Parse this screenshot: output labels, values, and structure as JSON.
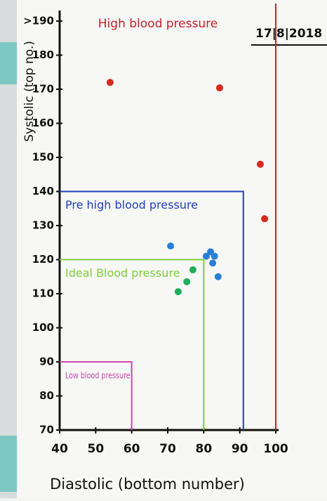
{
  "chart_data": {
    "type": "scatter",
    "title": "High blood pressure",
    "date": "17|8|2018",
    "x_label": "Diastolic (bottom number)",
    "y_label": "Systolic (top no.)",
    "xlim": [
      40,
      100
    ],
    "ylim": [
      70,
      190
    ],
    "xticks": [
      40,
      50,
      60,
      70,
      80,
      90,
      100
    ],
    "yticks": [
      70,
      80,
      90,
      100,
      110,
      120,
      130,
      140,
      150,
      160,
      170,
      180,
      {
        "value": 190,
        "label": ">190"
      }
    ],
    "threshold": {
      "x": 100,
      "color": "#c8202a"
    },
    "regions": [
      {
        "label": "Pre high blood pressure",
        "xlim": [
          40,
          91
        ],
        "ylim": [
          70,
          140
        ],
        "color": "#1f3fbf"
      },
      {
        "label": "Ideal Blood pressure",
        "xlim": [
          40,
          80
        ],
        "ylim": [
          70,
          120
        ],
        "color": "#7ccf3a"
      },
      {
        "label": "Low blood pressure",
        "xlim": [
          40,
          60
        ],
        "ylim": [
          70,
          90
        ],
        "color": "#c94aa8"
      }
    ],
    "series": [
      {
        "color": "#d62a1e",
        "x": [
          54,
          84.4,
          95.7,
          96.9
        ],
        "values": [
          172,
          170.4,
          148,
          132
        ]
      },
      {
        "color": "#2a7fd6",
        "x": [
          70.8,
          80.7,
          81.9,
          83,
          82.5,
          84
        ],
        "values": [
          124,
          121,
          122.3,
          121,
          119,
          115
        ]
      },
      {
        "color": "#1fae5a",
        "x": [
          77,
          75.3,
          72.9
        ],
        "values": [
          117,
          113.5,
          110.6
        ]
      }
    ]
  }
}
